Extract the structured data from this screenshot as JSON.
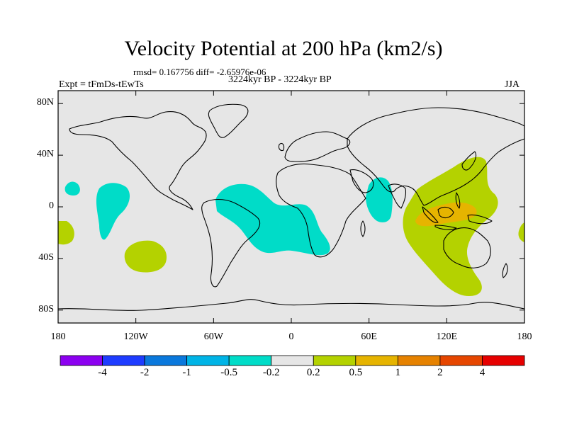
{
  "map": {
    "title": "Velocity Potential at 200 hPa (km2/s)",
    "stats": "rmsd= 0.167756 diff= -2.65976e-06",
    "experiment": "Expt = tFmDs-tEwTs",
    "period": "3224kyr BP - 3224kyr BP",
    "season": "JJA",
    "projection": "cylindrical equidistant",
    "lon_range": [
      -180,
      180
    ],
    "lat_range": [
      -90,
      90
    ],
    "lat_ticks": [
      {
        "value": 80,
        "label": "80N"
      },
      {
        "value": 40,
        "label": "40N"
      },
      {
        "value": 0,
        "label": "0"
      },
      {
        "value": -40,
        "label": "40S"
      },
      {
        "value": -80,
        "label": "80S"
      }
    ],
    "lon_ticks": [
      {
        "value": -180,
        "label": "180"
      },
      {
        "value": -120,
        "label": "120W"
      },
      {
        "value": -60,
        "label": "60W"
      },
      {
        "value": 0,
        "label": "0"
      },
      {
        "value": 60,
        "label": "60E"
      },
      {
        "value": 120,
        "label": "120E"
      },
      {
        "value": 180,
        "label": "180"
      }
    ]
  },
  "colorbar": {
    "colors": [
      "#8c00f0",
      "#1e3cff",
      "#0a78dc",
      "#00b4e6",
      "#00dcc8",
      "#e6e6e6",
      "#b4d200",
      "#e6b400",
      "#e68200",
      "#e64600",
      "#e60000"
    ],
    "labels": [
      "-4",
      "-2",
      "-1",
      "-0.5",
      "-0.2",
      "0.2",
      "0.5",
      "1",
      "2",
      "4"
    ]
  },
  "regions": [
    {
      "name": "east-pacific-north-negative",
      "level": "-0.2 to -0.5",
      "color": "#00dcc8"
    },
    {
      "name": "east-pacific-central-negative",
      "level": "-0.2 to -0.5",
      "color": "#00dcc8"
    },
    {
      "name": "south-america-atlantic-africa-negative",
      "level": "-0.2 to -0.5",
      "color": "#00dcc8"
    },
    {
      "name": "east-africa-indian-ocean-negative",
      "level": "-0.2 to -0.5",
      "color": "#00dcc8"
    },
    {
      "name": "west-pacific-asia-positive",
      "level": "0.2 to 0.5",
      "color": "#b4d200"
    },
    {
      "name": "maritime-continent-positive",
      "level": "0.5 to 1",
      "color": "#e6b400"
    },
    {
      "name": "southeast-pacific-positive",
      "level": "0.2 to 0.5",
      "color": "#b4d200"
    },
    {
      "name": "dateline-west-positive",
      "level": "0.2 to 0.5",
      "color": "#b4d200"
    },
    {
      "name": "dateline-east-positive",
      "level": "0.2 to 0.5",
      "color": "#b4d200"
    }
  ]
}
